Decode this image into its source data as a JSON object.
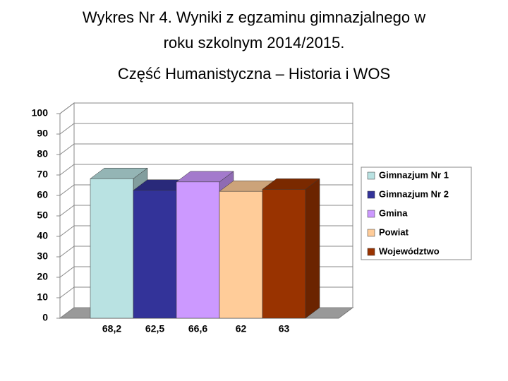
{
  "chart_data": {
    "type": "bar3d",
    "title": [
      "Wykres Nr 4. Wyniki z egzaminu gimnazjalnego  w",
      "roku szkolnym 2014/2015."
    ],
    "subtitle": "Część Humanistyczna – Historia i WOS",
    "ylim": [
      0,
      100
    ],
    "yticks": [
      0,
      10,
      20,
      30,
      40,
      50,
      60,
      70,
      80,
      90,
      100
    ],
    "grid": true,
    "legend": "right",
    "series": [
      {
        "name": "Gimnazjum Nr 1",
        "color": "#b9e2e2",
        "values": [
          68.2
        ],
        "value_labels": [
          "68,2"
        ]
      },
      {
        "name": "Gimnazjum Nr 2",
        "color": "#333399",
        "values": [
          62.5
        ],
        "value_labels": [
          "62,5"
        ]
      },
      {
        "name": "Gmina",
        "color": "#cc99ff",
        "values": [
          66.6
        ],
        "value_labels": [
          "66,6"
        ]
      },
      {
        "name": "Powiat",
        "color": "#ffcc99",
        "values": [
          62
        ],
        "value_labels": [
          "62"
        ]
      },
      {
        "name": "Województwo",
        "color": "#993300",
        "values": [
          63
        ],
        "value_labels": [
          "63"
        ]
      }
    ]
  }
}
